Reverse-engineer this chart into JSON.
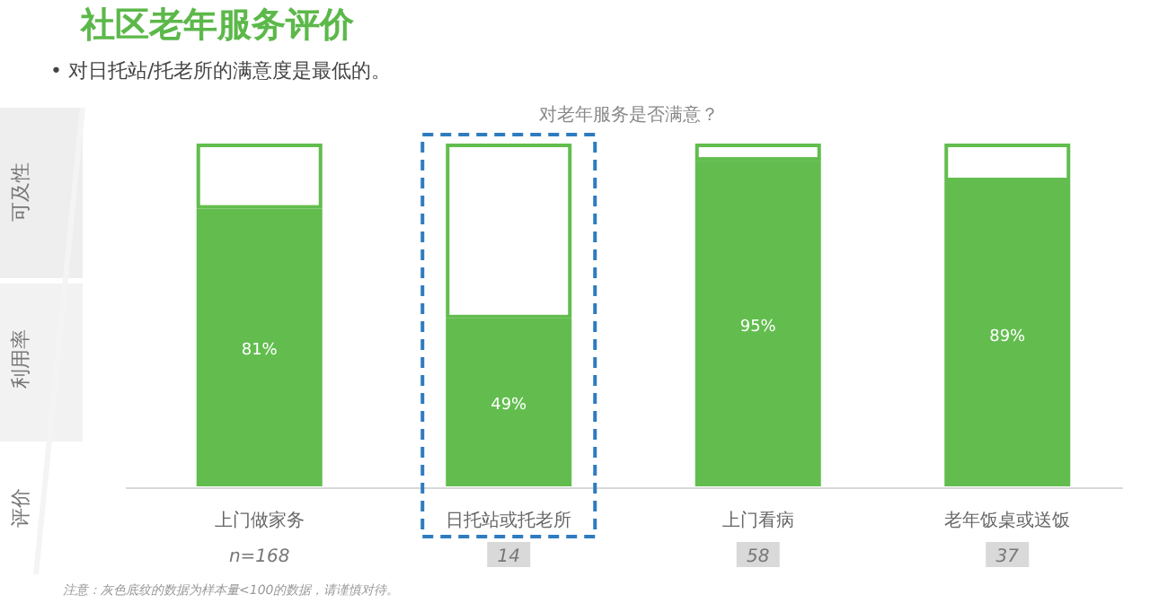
{
  "chart_data": {
    "type": "bar",
    "stacked": true,
    "title": "社区老年服务评价",
    "subtitle": "•  对日托站/托老所的满意度是最低的。",
    "categories": [
      "上门做家务",
      "日托站或托老所",
      "上门看病",
      "老年饭桌或送饭"
    ],
    "series": [
      {
        "color": "#62bd4e",
        "values": [
          81,
          49,
          95,
          89
        ],
        "value_labels": [
          "81%",
          "49%",
          "95%",
          "89%"
        ]
      },
      {
        "color": "#ffffff",
        "values": [
          19,
          51,
          5,
          11
        ]
      }
    ],
    "annotations": [
      "对老年服务是否满意？",
      "可及性",
      "利用率",
      "评价",
      "n=168",
      "14",
      "58",
      "37",
      "注意：灰色底纹的数据为样本量<100的数据，请谨慎对待。"
    ]
  }
}
